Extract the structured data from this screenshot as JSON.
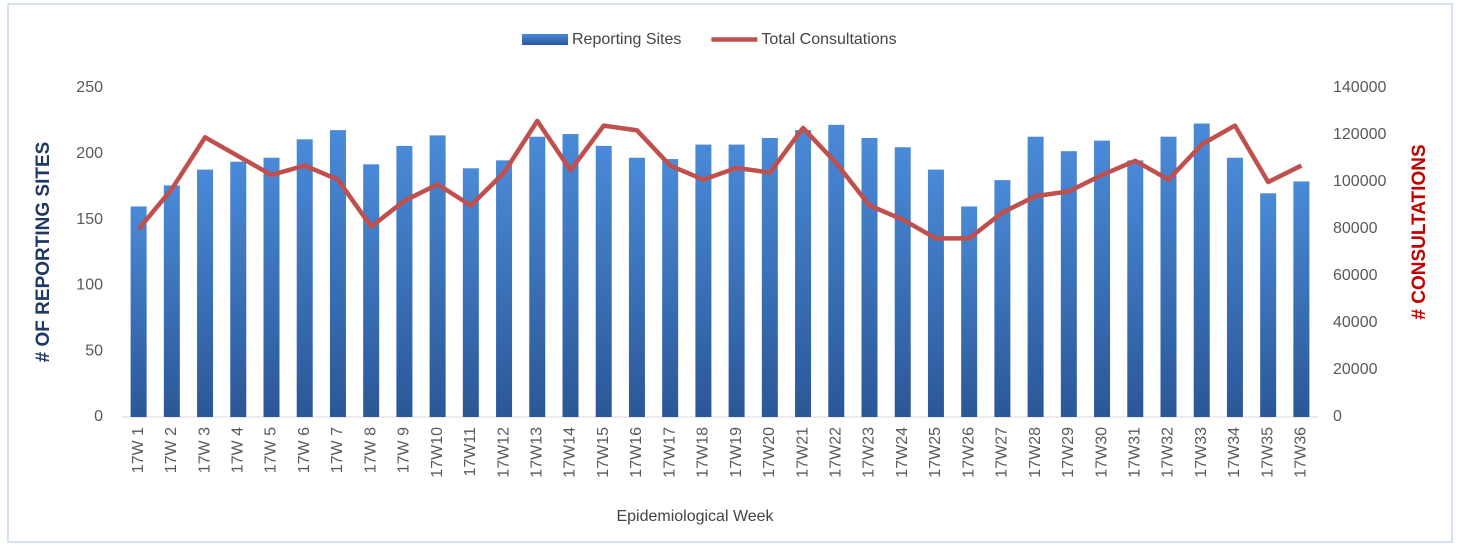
{
  "chart_data": {
    "type": "bar-line",
    "x_label": "Epidemiological Week",
    "y_label": "# OF REPORTING SITES",
    "y2_label": "# CONSULTATIONS",
    "categories": [
      "17W 1",
      "17W 2",
      "17W 3",
      "17W 4",
      "17W 5",
      "17W 6",
      "17W 7",
      "17W 8",
      "17W 9",
      "17W10",
      "17W11",
      "17W12",
      "17W13",
      "17W14",
      "17W15",
      "17W16",
      "17W17",
      "17W18",
      "17W19",
      "17W20",
      "17W21",
      "17W22",
      "17W23",
      "17W24",
      "17W25",
      "17W26",
      "17W27",
      "17W28",
      "17W29",
      "17W30",
      "17W31",
      "17W32",
      "17W33",
      "17W34",
      "17W35",
      "17W36"
    ],
    "series": [
      {
        "name": "Reporting Sites",
        "type": "bar",
        "color": "#3a75c4",
        "values": [
          160,
          176,
          188,
          194,
          197,
          211,
          218,
          192,
          206,
          214,
          189,
          195,
          213,
          215,
          206,
          197,
          196,
          207,
          207,
          212,
          218,
          222,
          212,
          205,
          188,
          160,
          180,
          213,
          202,
          210,
          195,
          213,
          223,
          197,
          170,
          179
        ]
      },
      {
        "name": "Total Consultations",
        "type": "line",
        "axis": "y2",
        "color": "#c0504d",
        "values": [
          80000,
          97000,
          119000,
          111000,
          103000,
          107000,
          101000,
          81000,
          92000,
          99000,
          90000,
          104000,
          126000,
          105000,
          124000,
          122000,
          107000,
          101000,
          106000,
          104000,
          123000,
          108000,
          90000,
          84000,
          76000,
          76000,
          87000,
          94000,
          96000,
          103000,
          109000,
          101000,
          116000,
          124000,
          100000,
          107000
        ]
      }
    ],
    "ylim": [
      0,
      250
    ],
    "yticks": [
      0,
      50,
      100,
      150,
      200,
      250
    ],
    "y2lim": [
      0,
      140000
    ],
    "y2ticks": [
      0,
      20000,
      40000,
      60000,
      80000,
      100000,
      120000,
      140000
    ],
    "legend": "top"
  }
}
